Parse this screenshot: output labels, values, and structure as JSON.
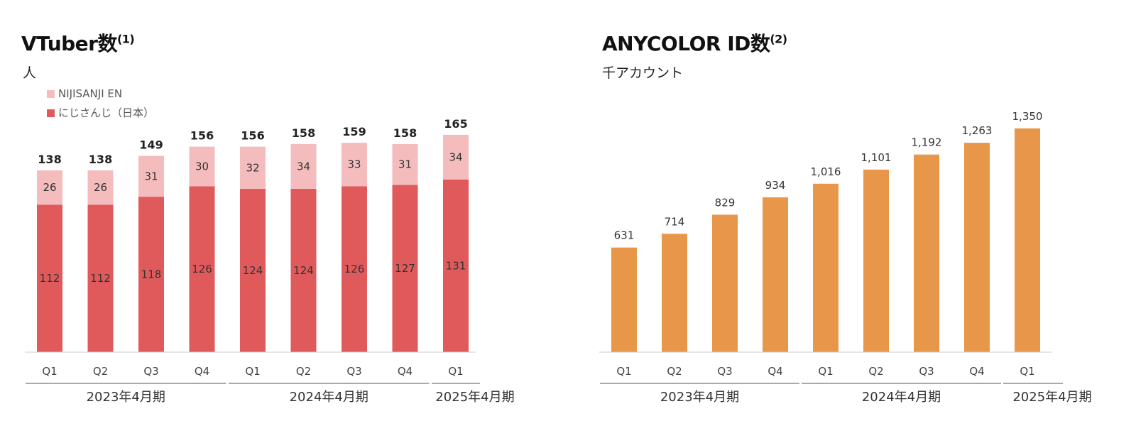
{
  "chart_data": [
    {
      "type": "bar",
      "stacked": true,
      "title": "VTuber数",
      "title_note": "(1)",
      "unit": "人",
      "categories": [
        "Q1",
        "Q2",
        "Q3",
        "Q4",
        "Q1",
        "Q2",
        "Q3",
        "Q4",
        "Q1"
      ],
      "period_groups": [
        {
          "label": "2023年4月期",
          "span": 4
        },
        {
          "label": "2024年4月期",
          "span": 4
        },
        {
          "label": "2025年4月期",
          "span": 1
        }
      ],
      "series": [
        {
          "name": "にじさんじ（日本）",
          "color": "#e05a5c",
          "values": [
            112,
            112,
            118,
            126,
            124,
            124,
            126,
            127,
            131
          ]
        },
        {
          "name": "NIJISANJI EN",
          "color": "#f4bcbd",
          "values": [
            26,
            26,
            31,
            30,
            32,
            34,
            33,
            31,
            34
          ]
        }
      ],
      "totals": [
        138,
        138,
        149,
        156,
        156,
        158,
        159,
        158,
        165
      ],
      "legend_position": "top-left",
      "grid": false
    },
    {
      "type": "bar",
      "title": "ANYCOLOR ID数",
      "title_note": "(2)",
      "unit": "千アカウント",
      "categories": [
        "Q1",
        "Q2",
        "Q3",
        "Q4",
        "Q1",
        "Q2",
        "Q3",
        "Q4",
        "Q1"
      ],
      "period_groups": [
        {
          "label": "2023年4月期",
          "span": 4
        },
        {
          "label": "2024年4月期",
          "span": 4
        },
        {
          "label": "2025年4月期",
          "span": 1
        }
      ],
      "color": "#e8974a",
      "values": [
        631,
        714,
        829,
        934,
        1016,
        1101,
        1192,
        1263,
        1350
      ],
      "value_labels": [
        "631",
        "714",
        "829",
        "934",
        "1,016",
        "1,101",
        "1,192",
        "1,263",
        "1,350"
      ],
      "grid": false
    }
  ]
}
